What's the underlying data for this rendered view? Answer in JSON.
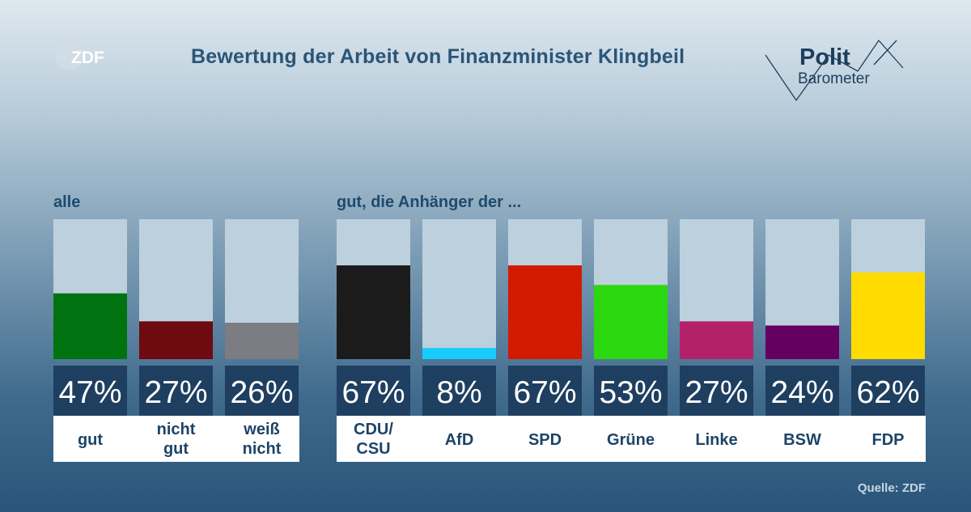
{
  "header": {
    "broadcaster_logo": "ZDF",
    "title": "Bewertung der Arbeit von Finanzminister Klingbeil",
    "brand_polit": "Polit",
    "brand_barometer": "Barometer"
  },
  "groups": {
    "all_label": "alle",
    "party_label": "gut, die Anhänger der ..."
  },
  "footer": {
    "source": "Quelle: ZDF"
  },
  "chart_data": [
    {
      "type": "bar",
      "group": "alle",
      "categories": [
        [
          "gut"
        ],
        [
          "nicht",
          "gut"
        ],
        [
          "weiß",
          "nicht"
        ]
      ],
      "values": [
        47,
        27,
        26
      ],
      "value_labels": [
        "47%",
        "27%",
        "26%"
      ],
      "colors": [
        "#007310",
        "#6e0b10",
        "#7b7d82"
      ],
      "ylim": [
        0,
        100
      ]
    },
    {
      "type": "bar",
      "group": "gut, die Anhänger der ...",
      "categories": [
        [
          "CDU/",
          "CSU"
        ],
        [
          "AfD"
        ],
        [
          "SPD"
        ],
        [
          "Grüne"
        ],
        [
          "Linke"
        ],
        [
          "BSW"
        ],
        [
          "FDP"
        ]
      ],
      "values": [
        67,
        8,
        67,
        53,
        27,
        24,
        62
      ],
      "value_labels": [
        "67%",
        "8%",
        "67%",
        "53%",
        "27%",
        "24%",
        "62%"
      ],
      "colors": [
        "#1b1b1b",
        "#19ccff",
        "#d11a00",
        "#2bd80f",
        "#b2226b",
        "#650060",
        "#ffdb00"
      ],
      "ylim": [
        0,
        100
      ]
    }
  ]
}
